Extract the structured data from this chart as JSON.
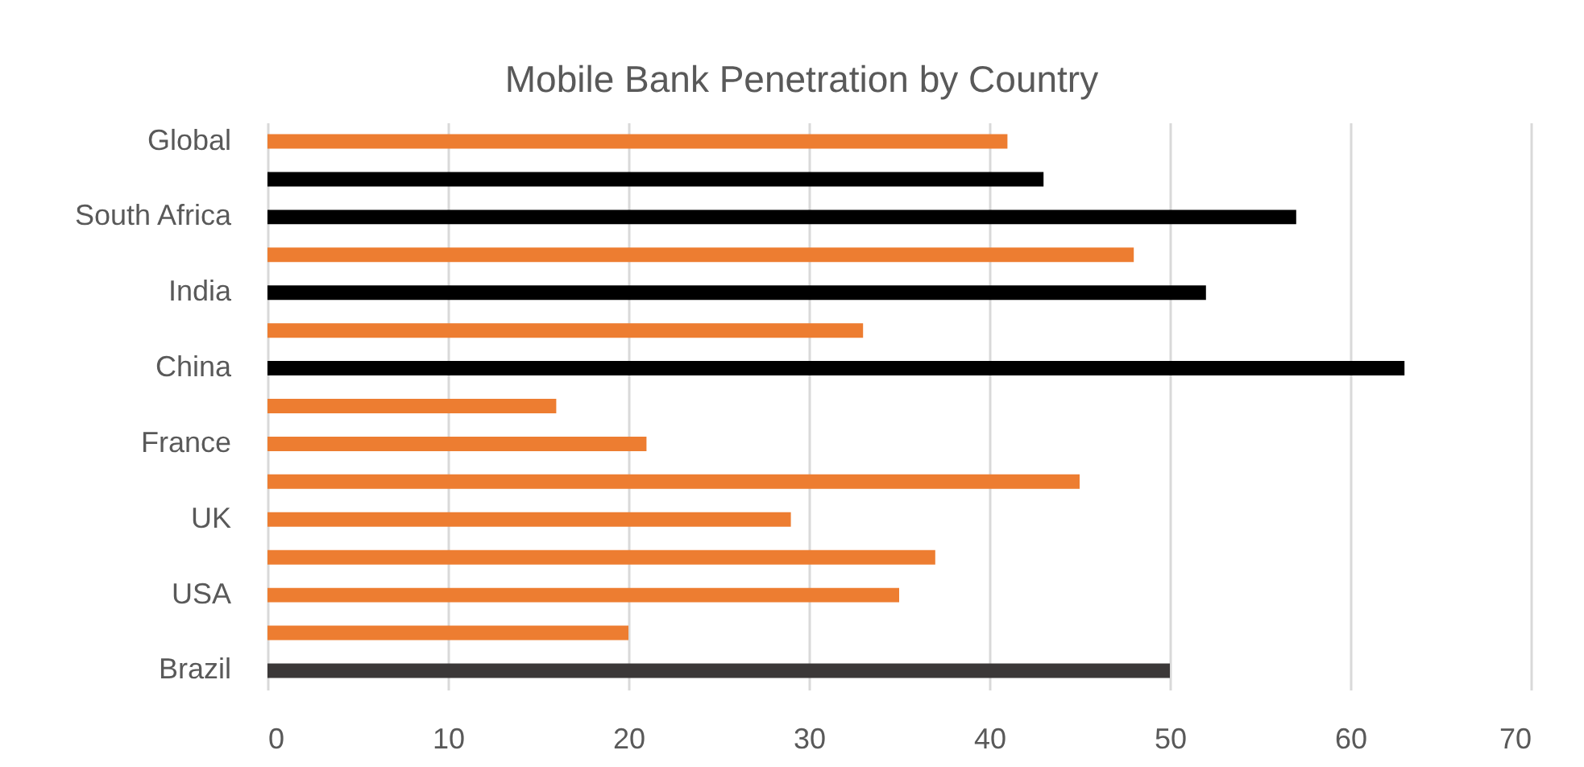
{
  "chart_data": {
    "type": "bar",
    "orientation": "horizontal",
    "title": "Mobile Bank Penetration by Country",
    "categories": [
      "Global",
      null,
      "South Africa",
      null,
      "India",
      null,
      "China",
      null,
      "France",
      null,
      "UK",
      null,
      "USA",
      null,
      "Brazil"
    ],
    "values": [
      41,
      43,
      57,
      48,
      52,
      33,
      63,
      16,
      21,
      45,
      29,
      37,
      35,
      20,
      50
    ],
    "colors": [
      "#ed7d31",
      "#000000",
      "#000000",
      "#ed7d31",
      "#000000",
      "#ed7d31",
      "#000000",
      "#ed7d31",
      "#ed7d31",
      "#ed7d31",
      "#ed7d31",
      "#ed7d31",
      "#ed7d31",
      "#ed7d31",
      "#3b3838"
    ],
    "xlim": [
      0,
      70
    ],
    "xticks": [
      0,
      10,
      20,
      30,
      40,
      50,
      60,
      70
    ],
    "grid": "x"
  }
}
